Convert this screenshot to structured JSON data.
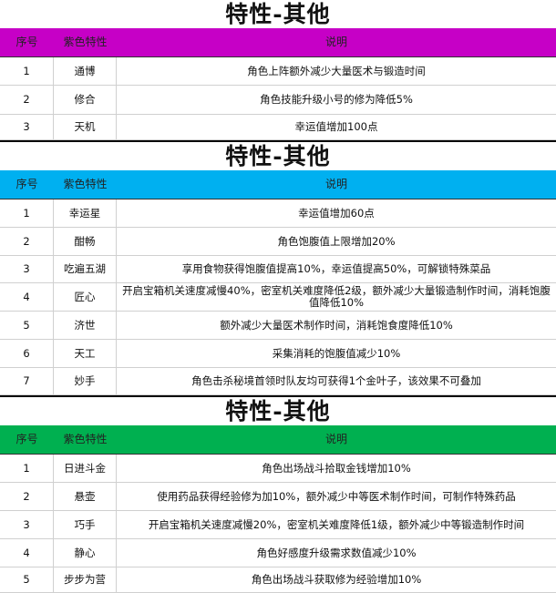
{
  "colors": {
    "purple": "#c600c6",
    "blue": "#00b0f0",
    "green": "#00b050"
  },
  "sections": [
    {
      "title": "特性-其他",
      "header": [
        "序号",
        "紫色特性",
        "说明"
      ],
      "rows": [
        [
          "1",
          "通博",
          "角色上阵额外减少大量医术与锻造时间"
        ],
        [
          "2",
          "修合",
          "角色技能升级小号的修为降低5%"
        ],
        [
          "3",
          "天机",
          "幸运值增加100点"
        ]
      ]
    },
    {
      "title": "特性-其他",
      "header": [
        "序号",
        "紫色特性",
        "说明"
      ],
      "rows": [
        [
          "1",
          "幸运星",
          "幸运值增加60点"
        ],
        [
          "2",
          "酣畅",
          "角色饱腹值上限增加20%"
        ],
        [
          "3",
          "吃遍五湖",
          "享用食物获得饱腹值提高10%，幸运值提高50%，可解锁特殊菜品"
        ],
        [
          "4",
          "匠心",
          "开启宝箱机关速度减慢40%，密室机关难度降低2级，额外减少大量锻造制作时间，消耗饱腹值降低10%"
        ],
        [
          "5",
          "济世",
          "额外减少大量医术制作时间，消耗饱食度降低10%"
        ],
        [
          "6",
          "天工",
          "采集消耗的饱腹值减少10%"
        ],
        [
          "7",
          "妙手",
          "角色击杀秘境首领时队友均可获得1个金叶子，该效果不可叠加"
        ]
      ]
    },
    {
      "title": "特性-其他",
      "header": [
        "序号",
        "紫色特性",
        "说明"
      ],
      "rows": [
        [
          "1",
          "日进斗金",
          "角色出场战斗拾取金钱增加10%"
        ],
        [
          "2",
          "悬壶",
          "使用药品获得经验修为加10%，额外减少中等医术制作时间，可制作特殊药品"
        ],
        [
          "3",
          "巧手",
          "开启宝箱机关速度减慢20%，密室机关难度降低1级，额外减少中等锻造制作时间"
        ],
        [
          "4",
          "静心",
          "角色好感度升级需求数值减少10%"
        ],
        [
          "5",
          "步步为营",
          "角色出场战斗获取修为经验增加10%"
        ]
      ]
    }
  ]
}
